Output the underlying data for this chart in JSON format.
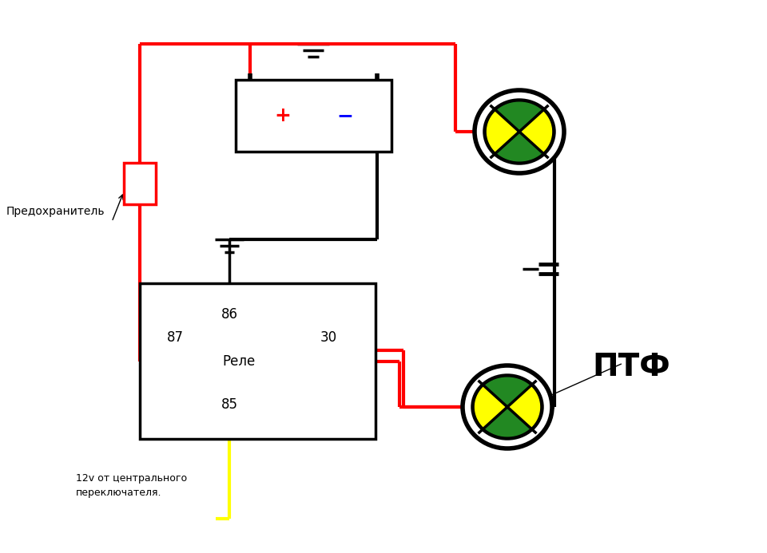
{
  "bg": "#ffffff",
  "red": "#ff0000",
  "black": "#000000",
  "yellow": "#ffff00",
  "label_predohranitel": "Предохранитель",
  "label_rele": "Реле",
  "label_ptf": "ПТФ",
  "label_12v_line1": "12v от центрального",
  "label_12v_line2": "переключателя.",
  "label_86": "86",
  "label_87": "87",
  "label_85": "85",
  "label_30": "30",
  "label_plus": "+",
  "label_minus": "−",
  "lw": 3.0
}
